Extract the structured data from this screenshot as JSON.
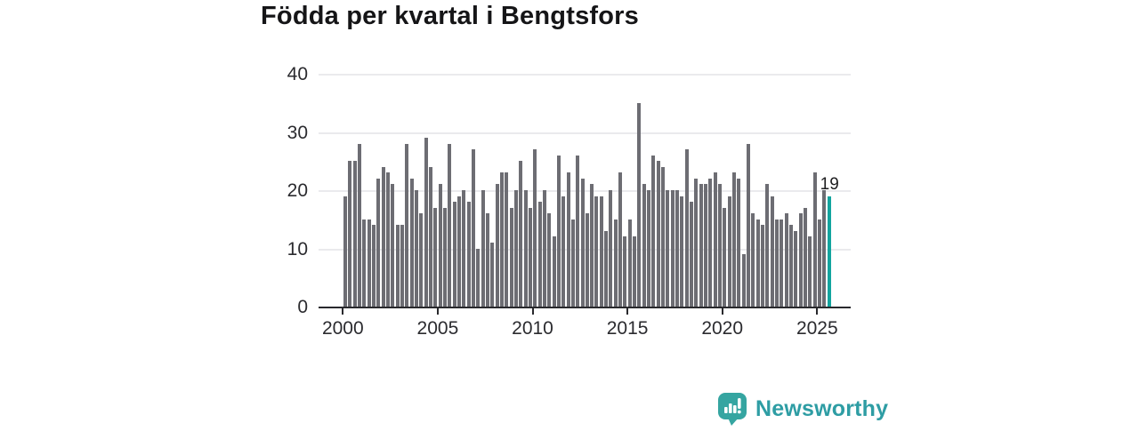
{
  "title": "Födda per kvartal i Bengtsfors",
  "chart_data": {
    "type": "bar",
    "title": "Födda per kvartal i Bengtsfors",
    "xlabel": "",
    "ylabel": "",
    "ylim": [
      0,
      40
    ],
    "y_ticks": [
      0,
      10,
      20,
      30,
      40
    ],
    "x_tick_labels": [
      "2000",
      "2005",
      "2010",
      "2015",
      "2020",
      "2025"
    ],
    "x_tick_years": [
      2000,
      2005,
      2010,
      2015,
      2020,
      2025
    ],
    "grid": true,
    "legend_position": "none",
    "frequency": "quarterly",
    "start_period": "2000-Q1",
    "end_period": "2025-Q3",
    "highlight_last_bar": true,
    "last_bar_label": "19",
    "bar_color": "#6D6D73",
    "highlight_color": "#12A49E",
    "values": [
      19,
      25,
      25,
      28,
      15,
      15,
      14,
      22,
      24,
      23,
      21,
      14,
      14,
      28,
      22,
      20,
      16,
      29,
      24,
      17,
      21,
      17,
      28,
      18,
      19,
      20,
      18,
      27,
      10,
      20,
      16,
      11,
      21,
      23,
      23,
      17,
      20,
      25,
      20,
      17,
      27,
      18,
      20,
      16,
      12,
      26,
      19,
      23,
      15,
      26,
      22,
      16,
      21,
      19,
      19,
      13,
      20,
      15,
      23,
      12,
      15,
      12,
      35,
      21,
      20,
      26,
      25,
      24,
      20,
      20,
      20,
      19,
      27,
      18,
      22,
      21,
      21,
      22,
      23,
      21,
      17,
      19,
      23,
      22,
      9,
      28,
      16,
      15,
      14,
      21,
      19,
      15,
      15,
      16,
      14,
      13,
      16,
      17,
      12,
      23,
      15,
      20,
      19
    ]
  },
  "branding": {
    "logo_text": "Newsworthy",
    "logo_icon": "bar-chart-speech-bubble-icon",
    "logo_color": "#2E9DA4",
    "icon_fill": "#35A5A1"
  }
}
